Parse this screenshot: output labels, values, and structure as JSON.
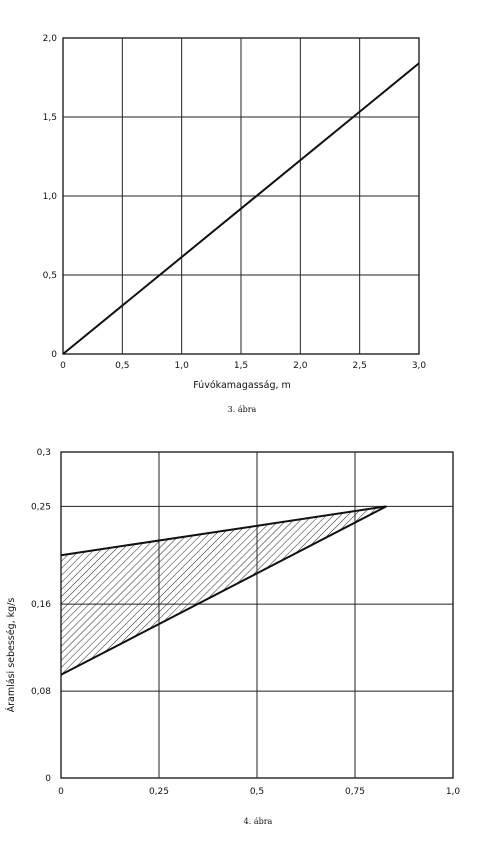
{
  "chart_data": [
    {
      "type": "line",
      "caption": "3. ábra",
      "xlabel": "Fúvókamagasság, m",
      "ylabel": "",
      "xlim": [
        0,
        3.0
      ],
      "ylim": [
        0,
        2.0
      ],
      "x_ticks": [
        "0",
        "0,5",
        "1,0",
        "1,5",
        "2,0",
        "2,5",
        "3,0"
      ],
      "y_ticks": [
        "0",
        "0,5",
        "1,0",
        "1,5",
        "2,0"
      ],
      "grid": true,
      "series": [
        {
          "x": [
            0,
            3.0
          ],
          "y": [
            0,
            1.84
          ]
        }
      ]
    },
    {
      "type": "area",
      "caption": "4. ábra",
      "xlabel": "",
      "ylabel": "Áramlási sebesség, kg/s",
      "xlim": [
        0,
        1.0
      ],
      "ylim": [
        0,
        0.3
      ],
      "x_ticks": [
        "0",
        "0,25",
        "0,5",
        "0,75",
        "1,0"
      ],
      "y_ticks": [
        "0",
        "0,08",
        "0,16",
        "0,25",
        "0,3"
      ],
      "y_tick_values": [
        0,
        0.08,
        0.16,
        0.25,
        0.3
      ],
      "grid": true,
      "series": [
        {
          "x": [
            0,
            0.83
          ],
          "y": [
            0.205,
            0.25
          ]
        },
        {
          "x": [
            0,
            0.83
          ],
          "y": [
            0.095,
            0.25
          ]
        }
      ],
      "shaded_region": "hatched area between upper and lower lines"
    }
  ]
}
